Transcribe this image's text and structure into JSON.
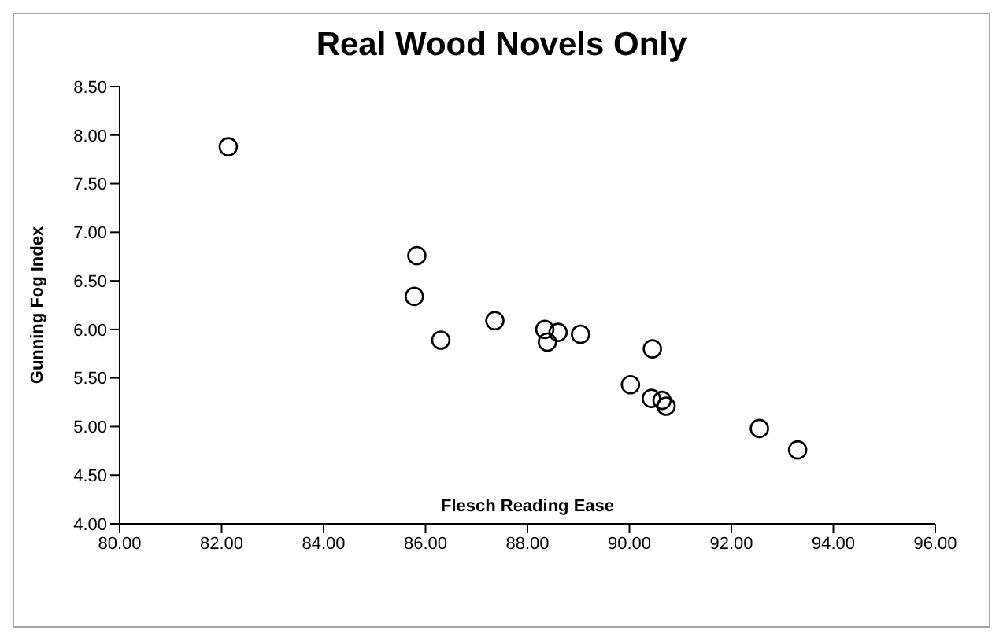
{
  "chart_data": {
    "type": "scatter",
    "title": "Real Wood Novels Only",
    "xlabel": "Flesch Reading Ease",
    "ylabel": "Gunning Fog Index",
    "x": [
      82.13,
      85.83,
      85.78,
      86.3,
      87.36,
      88.34,
      88.39,
      88.6,
      89.04,
      90.45,
      90.02,
      90.43,
      90.64,
      90.72,
      92.55,
      93.3
    ],
    "series": [
      {
        "color": "#000000",
        "values": [
          7.88,
          6.76,
          6.34,
          5.89,
          6.09,
          6.0,
          5.87,
          5.97,
          5.95,
          5.8,
          5.43,
          5.29,
          5.27,
          5.21,
          4.98,
          4.76
        ]
      }
    ],
    "xlim": [
      80,
      96
    ],
    "ylim": [
      4,
      8.5
    ],
    "xticks": [
      {
        "value": 80,
        "label": "80.00"
      },
      {
        "value": 82,
        "label": "82.00"
      },
      {
        "value": 84,
        "label": "84.00"
      },
      {
        "value": 86,
        "label": "86.00"
      },
      {
        "value": 88,
        "label": "88.00"
      },
      {
        "value": 90,
        "label": "90.00"
      },
      {
        "value": 92,
        "label": "92.00"
      },
      {
        "value": 94,
        "label": "94.00"
      },
      {
        "value": 96,
        "label": "96.00"
      }
    ],
    "yticks": [
      {
        "value": 4,
        "label": "4.00"
      },
      {
        "value": 4.5,
        "label": "4.50"
      },
      {
        "value": 5,
        "label": "5.00"
      },
      {
        "value": 5.5,
        "label": "5.50"
      },
      {
        "value": 6,
        "label": "6.00"
      },
      {
        "value": 6.5,
        "label": "6.50"
      },
      {
        "value": 7,
        "label": "7.00"
      },
      {
        "value": 7.5,
        "label": "7.50"
      },
      {
        "value": 8,
        "label": "8.00"
      },
      {
        "value": 8.5,
        "label": "8.50"
      }
    ],
    "grid": false,
    "legend": false,
    "marker": "circle"
  }
}
